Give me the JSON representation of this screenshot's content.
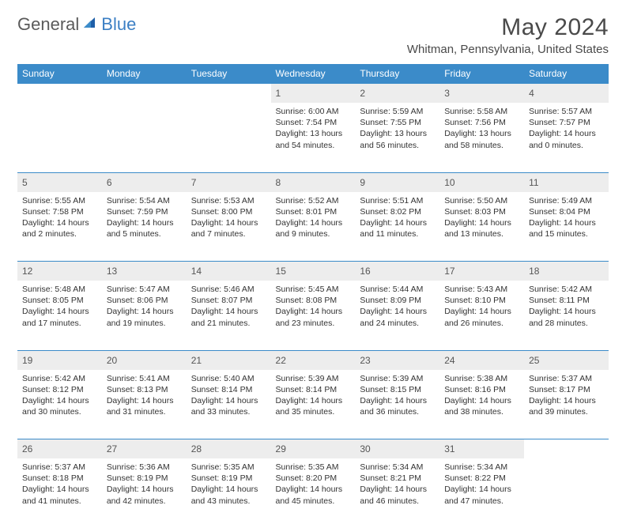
{
  "logo": {
    "general": "General",
    "blue": "Blue"
  },
  "title": "May 2024",
  "location": "Whitman, Pennsylvania, United States",
  "columns": [
    "Sunday",
    "Monday",
    "Tuesday",
    "Wednesday",
    "Thursday",
    "Friday",
    "Saturday"
  ],
  "colors": {
    "header_bg": "#3b8bc9",
    "header_text": "#ffffff",
    "daynum_bg": "#ededed",
    "body_text": "#333333",
    "logo_gray": "#5a5a5a",
    "logo_blue": "#3b7fc4",
    "border": "#3b8bc9"
  },
  "weeks": [
    [
      null,
      null,
      null,
      {
        "n": "1",
        "sr": "6:00 AM",
        "ss": "7:54 PM",
        "dl": "13 hours and 54 minutes."
      },
      {
        "n": "2",
        "sr": "5:59 AM",
        "ss": "7:55 PM",
        "dl": "13 hours and 56 minutes."
      },
      {
        "n": "3",
        "sr": "5:58 AM",
        "ss": "7:56 PM",
        "dl": "13 hours and 58 minutes."
      },
      {
        "n": "4",
        "sr": "5:57 AM",
        "ss": "7:57 PM",
        "dl": "14 hours and 0 minutes."
      }
    ],
    [
      {
        "n": "5",
        "sr": "5:55 AM",
        "ss": "7:58 PM",
        "dl": "14 hours and 2 minutes."
      },
      {
        "n": "6",
        "sr": "5:54 AM",
        "ss": "7:59 PM",
        "dl": "14 hours and 5 minutes."
      },
      {
        "n": "7",
        "sr": "5:53 AM",
        "ss": "8:00 PM",
        "dl": "14 hours and 7 minutes."
      },
      {
        "n": "8",
        "sr": "5:52 AM",
        "ss": "8:01 PM",
        "dl": "14 hours and 9 minutes."
      },
      {
        "n": "9",
        "sr": "5:51 AM",
        "ss": "8:02 PM",
        "dl": "14 hours and 11 minutes."
      },
      {
        "n": "10",
        "sr": "5:50 AM",
        "ss": "8:03 PM",
        "dl": "14 hours and 13 minutes."
      },
      {
        "n": "11",
        "sr": "5:49 AM",
        "ss": "8:04 PM",
        "dl": "14 hours and 15 minutes."
      }
    ],
    [
      {
        "n": "12",
        "sr": "5:48 AM",
        "ss": "8:05 PM",
        "dl": "14 hours and 17 minutes."
      },
      {
        "n": "13",
        "sr": "5:47 AM",
        "ss": "8:06 PM",
        "dl": "14 hours and 19 minutes."
      },
      {
        "n": "14",
        "sr": "5:46 AM",
        "ss": "8:07 PM",
        "dl": "14 hours and 21 minutes."
      },
      {
        "n": "15",
        "sr": "5:45 AM",
        "ss": "8:08 PM",
        "dl": "14 hours and 23 minutes."
      },
      {
        "n": "16",
        "sr": "5:44 AM",
        "ss": "8:09 PM",
        "dl": "14 hours and 24 minutes."
      },
      {
        "n": "17",
        "sr": "5:43 AM",
        "ss": "8:10 PM",
        "dl": "14 hours and 26 minutes."
      },
      {
        "n": "18",
        "sr": "5:42 AM",
        "ss": "8:11 PM",
        "dl": "14 hours and 28 minutes."
      }
    ],
    [
      {
        "n": "19",
        "sr": "5:42 AM",
        "ss": "8:12 PM",
        "dl": "14 hours and 30 minutes."
      },
      {
        "n": "20",
        "sr": "5:41 AM",
        "ss": "8:13 PM",
        "dl": "14 hours and 31 minutes."
      },
      {
        "n": "21",
        "sr": "5:40 AM",
        "ss": "8:14 PM",
        "dl": "14 hours and 33 minutes."
      },
      {
        "n": "22",
        "sr": "5:39 AM",
        "ss": "8:14 PM",
        "dl": "14 hours and 35 minutes."
      },
      {
        "n": "23",
        "sr": "5:39 AM",
        "ss": "8:15 PM",
        "dl": "14 hours and 36 minutes."
      },
      {
        "n": "24",
        "sr": "5:38 AM",
        "ss": "8:16 PM",
        "dl": "14 hours and 38 minutes."
      },
      {
        "n": "25",
        "sr": "5:37 AM",
        "ss": "8:17 PM",
        "dl": "14 hours and 39 minutes."
      }
    ],
    [
      {
        "n": "26",
        "sr": "5:37 AM",
        "ss": "8:18 PM",
        "dl": "14 hours and 41 minutes."
      },
      {
        "n": "27",
        "sr": "5:36 AM",
        "ss": "8:19 PM",
        "dl": "14 hours and 42 minutes."
      },
      {
        "n": "28",
        "sr": "5:35 AM",
        "ss": "8:19 PM",
        "dl": "14 hours and 43 minutes."
      },
      {
        "n": "29",
        "sr": "5:35 AM",
        "ss": "8:20 PM",
        "dl": "14 hours and 45 minutes."
      },
      {
        "n": "30",
        "sr": "5:34 AM",
        "ss": "8:21 PM",
        "dl": "14 hours and 46 minutes."
      },
      {
        "n": "31",
        "sr": "5:34 AM",
        "ss": "8:22 PM",
        "dl": "14 hours and 47 minutes."
      },
      null
    ]
  ],
  "labels": {
    "sunrise": "Sunrise:",
    "sunset": "Sunset:",
    "daylight": "Daylight:"
  }
}
